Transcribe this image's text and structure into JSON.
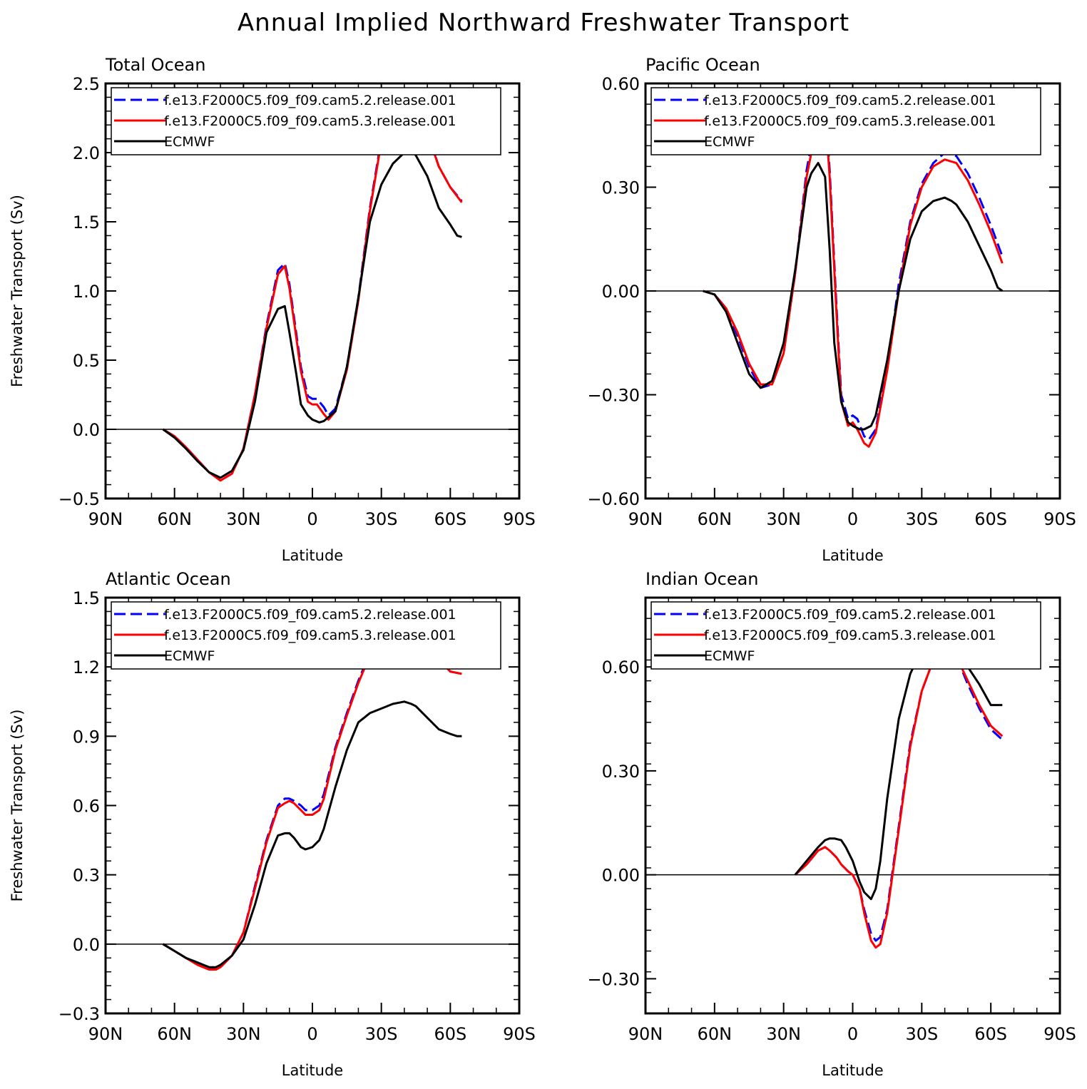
{
  "title": "Annual Implied Northward Freshwater Transport",
  "chart_data": [
    {
      "type": "line",
      "panel_title": "Total Ocean",
      "xlabel": "Latitude",
      "ylabel": "Freshwater Transport (Sv)",
      "xlim": [
        90,
        -90
      ],
      "ylim": [
        -0.5,
        2.5
      ],
      "xticks": [
        90,
        60,
        30,
        0,
        -30,
        -60,
        -90
      ],
      "xtick_labels": [
        "90N",
        "60N",
        "30N",
        "0",
        "30S",
        "60S",
        "90S"
      ],
      "yticks": [
        -0.5,
        0.0,
        0.5,
        1.0,
        1.5,
        2.0,
        2.5
      ],
      "ytick_labels": [
        "−0.5",
        "0.0",
        "0.5",
        "1.0",
        "1.5",
        "2.0",
        "2.5"
      ],
      "zero_line": true,
      "legend_position": "top-left",
      "series": [
        {
          "name": "f.e13.F2000C5.f09_f09.cam5.2.release.001",
          "color": "#0000ff",
          "dash": "dashed",
          "x": [
            65,
            60,
            55,
            50,
            45,
            40,
            35,
            30,
            25,
            20,
            15,
            12,
            10,
            5,
            2,
            0,
            -2,
            -5,
            -7,
            -10,
            -15,
            -20,
            -25,
            -30,
            -35,
            -40,
            -43,
            -45,
            -50,
            -55,
            -60,
            -65
          ],
          "y": [
            0.0,
            -0.05,
            -0.13,
            -0.22,
            -0.31,
            -0.37,
            -0.32,
            -0.14,
            0.25,
            0.75,
            1.15,
            1.2,
            1.05,
            0.45,
            0.24,
            0.22,
            0.22,
            0.16,
            0.1,
            0.15,
            0.45,
            0.95,
            1.6,
            2.1,
            2.33,
            2.42,
            2.43,
            2.38,
            2.15,
            1.9,
            1.75,
            1.65
          ]
        },
        {
          "name": "f.e13.F2000C5.f09_f09.cam5.3.release.001",
          "color": "#ff0000",
          "dash": "solid",
          "x": [
            65,
            60,
            55,
            50,
            45,
            40,
            35,
            30,
            25,
            20,
            15,
            12,
            10,
            5,
            2,
            0,
            -2,
            -5,
            -7,
            -10,
            -15,
            -20,
            -25,
            -30,
            -35,
            -40,
            -43,
            -45,
            -50,
            -55,
            -60,
            -65
          ],
          "y": [
            0.0,
            -0.05,
            -0.13,
            -0.22,
            -0.31,
            -0.37,
            -0.32,
            -0.14,
            0.25,
            0.73,
            1.12,
            1.18,
            1.02,
            0.42,
            0.2,
            0.18,
            0.18,
            0.11,
            0.07,
            0.13,
            0.43,
            0.93,
            1.58,
            2.08,
            2.32,
            2.41,
            2.42,
            2.37,
            2.14,
            1.9,
            1.75,
            1.64
          ]
        },
        {
          "name": "ECMWF",
          "color": "#000000",
          "dash": "solid",
          "x": [
            65,
            60,
            55,
            50,
            45,
            40,
            35,
            30,
            25,
            20,
            15,
            12,
            10,
            7,
            5,
            2,
            0,
            -3,
            -5,
            -10,
            -15,
            -20,
            -25,
            -30,
            -35,
            -40,
            -43,
            -45,
            -50,
            -55,
            -60,
            -63,
            -65
          ],
          "y": [
            0.0,
            -0.06,
            -0.14,
            -0.23,
            -0.31,
            -0.35,
            -0.3,
            -0.15,
            0.2,
            0.7,
            0.87,
            0.89,
            0.7,
            0.4,
            0.18,
            0.1,
            0.07,
            0.05,
            0.06,
            0.13,
            0.45,
            0.95,
            1.5,
            1.77,
            1.92,
            2.0,
            2.01,
            1.98,
            1.83,
            1.6,
            1.48,
            1.4,
            1.39
          ]
        }
      ]
    },
    {
      "type": "line",
      "panel_title": "Pacific Ocean",
      "xlabel": "Latitude",
      "ylabel": "",
      "xlim": [
        90,
        -90
      ],
      "ylim": [
        -0.6,
        0.6
      ],
      "xticks": [
        90,
        60,
        30,
        0,
        -30,
        -60,
        -90
      ],
      "xtick_labels": [
        "90N",
        "60N",
        "30N",
        "0",
        "30S",
        "60S",
        "90S"
      ],
      "yticks": [
        -0.6,
        -0.3,
        0.0,
        0.3,
        0.6
      ],
      "ytick_labels": [
        "−0.60",
        "−0.30",
        "0.00",
        "0.30",
        "0.60"
      ],
      "zero_line": true,
      "legend_position": "top-left",
      "series": [
        {
          "name": "f.e13.F2000C5.f09_f09.cam5.2.release.001",
          "color": "#0000ff",
          "dash": "dashed",
          "x": [
            65,
            60,
            55,
            50,
            45,
            40,
            35,
            30,
            25,
            20,
            15,
            12,
            10,
            7,
            5,
            2,
            0,
            -2,
            -5,
            -7,
            -10,
            -15,
            -20,
            -25,
            -30,
            -35,
            -40,
            -45,
            -50,
            -55,
            -60,
            -65
          ],
          "y": [
            0.0,
            -0.01,
            -0.05,
            -0.13,
            -0.22,
            -0.28,
            -0.27,
            -0.18,
            0.05,
            0.35,
            0.53,
            0.54,
            0.35,
            -0.05,
            -0.3,
            -0.37,
            -0.36,
            -0.37,
            -0.42,
            -0.43,
            -0.4,
            -0.22,
            0.02,
            0.2,
            0.31,
            0.37,
            0.4,
            0.39,
            0.34,
            0.27,
            0.19,
            0.1
          ]
        },
        {
          "name": "f.e13.F2000C5.f09_f09.cam5.3.release.001",
          "color": "#ff0000",
          "dash": "solid",
          "x": [
            65,
            60,
            55,
            50,
            45,
            40,
            35,
            30,
            25,
            20,
            15,
            12,
            10,
            7,
            5,
            2,
            0,
            -2,
            -5,
            -7,
            -10,
            -15,
            -20,
            -25,
            -30,
            -35,
            -40,
            -45,
            -50,
            -55,
            -60,
            -65
          ],
          "y": [
            0.0,
            -0.01,
            -0.05,
            -0.12,
            -0.21,
            -0.27,
            -0.27,
            -0.18,
            0.05,
            0.33,
            0.5,
            0.52,
            0.33,
            -0.07,
            -0.32,
            -0.39,
            -0.38,
            -0.4,
            -0.44,
            -0.45,
            -0.41,
            -0.23,
            0.0,
            0.19,
            0.3,
            0.36,
            0.38,
            0.37,
            0.32,
            0.25,
            0.17,
            0.08
          ]
        },
        {
          "name": "ECMWF",
          "color": "#000000",
          "dash": "solid",
          "x": [
            65,
            60,
            55,
            50,
            45,
            40,
            35,
            30,
            25,
            20,
            18,
            15,
            12,
            10,
            8,
            5,
            2,
            0,
            -3,
            -5,
            -8,
            -10,
            -15,
            -20,
            -25,
            -30,
            -35,
            -40,
            -43,
            -45,
            -50,
            -55,
            -60,
            -63,
            -65
          ],
          "y": [
            0.0,
            -0.01,
            -0.06,
            -0.15,
            -0.24,
            -0.28,
            -0.26,
            -0.15,
            0.06,
            0.3,
            0.34,
            0.37,
            0.33,
            0.12,
            -0.15,
            -0.32,
            -0.38,
            -0.39,
            -0.4,
            -0.4,
            -0.39,
            -0.36,
            -0.2,
            0.0,
            0.15,
            0.23,
            0.26,
            0.27,
            0.26,
            0.25,
            0.2,
            0.13,
            0.06,
            0.01,
            0.0
          ]
        }
      ]
    },
    {
      "type": "line",
      "panel_title": "Atlantic Ocean",
      "xlabel": "Latitude",
      "ylabel": "Freshwater Transport (Sv)",
      "xlim": [
        90,
        -90
      ],
      "ylim": [
        -0.3,
        1.5
      ],
      "xticks": [
        90,
        60,
        30,
        0,
        -30,
        -60,
        -90
      ],
      "xtick_labels": [
        "90N",
        "60N",
        "30N",
        "0",
        "30S",
        "60S",
        "90S"
      ],
      "yticks": [
        -0.3,
        0.0,
        0.3,
        0.6,
        0.9,
        1.2,
        1.5
      ],
      "ytick_labels": [
        "−0.3",
        "0.0",
        "0.3",
        "0.6",
        "0.9",
        "1.2",
        "1.5"
      ],
      "zero_line": true,
      "legend_position": "top-left",
      "series": [
        {
          "name": "f.e13.F2000C5.f09_f09.cam5.2.release.001",
          "color": "#0000ff",
          "dash": "dashed",
          "x": [
            65,
            60,
            55,
            50,
            45,
            42,
            40,
            35,
            30,
            25,
            20,
            15,
            12,
            10,
            8,
            5,
            3,
            0,
            -3,
            -5,
            -10,
            -15,
            -20,
            -25,
            -30,
            -35,
            -40,
            -43,
            -45,
            -50,
            -55,
            -60,
            -65
          ],
          "y": [
            0.0,
            -0.03,
            -0.06,
            -0.08,
            -0.1,
            -0.11,
            -0.1,
            -0.05,
            0.05,
            0.25,
            0.45,
            0.6,
            0.63,
            0.63,
            0.62,
            0.6,
            0.58,
            0.58,
            0.6,
            0.65,
            0.85,
            1.0,
            1.14,
            1.26,
            1.33,
            1.37,
            1.38,
            1.36,
            1.33,
            1.28,
            1.23,
            1.18,
            1.17
          ]
        },
        {
          "name": "f.e13.F2000C5.f09_f09.cam5.3.release.001",
          "color": "#ff0000",
          "dash": "solid",
          "x": [
            65,
            60,
            55,
            50,
            45,
            42,
            40,
            35,
            30,
            25,
            20,
            15,
            12,
            10,
            8,
            5,
            3,
            0,
            -3,
            -5,
            -10,
            -15,
            -20,
            -25,
            -30,
            -35,
            -40,
            -43,
            -45,
            -50,
            -55,
            -60,
            -65
          ],
          "y": [
            0.0,
            -0.03,
            -0.06,
            -0.09,
            -0.11,
            -0.11,
            -0.1,
            -0.05,
            0.05,
            0.24,
            0.44,
            0.59,
            0.61,
            0.62,
            0.61,
            0.58,
            0.56,
            0.56,
            0.58,
            0.63,
            0.84,
            0.99,
            1.13,
            1.25,
            1.32,
            1.36,
            1.38,
            1.36,
            1.33,
            1.28,
            1.23,
            1.18,
            1.17
          ]
        },
        {
          "name": "ECMWF",
          "color": "#000000",
          "dash": "solid",
          "x": [
            65,
            60,
            55,
            50,
            45,
            42,
            40,
            35,
            30,
            25,
            20,
            15,
            12,
            10,
            8,
            5,
            3,
            0,
            -3,
            -5,
            -10,
            -15,
            -20,
            -25,
            -30,
            -35,
            -40,
            -43,
            -45,
            -50,
            -55,
            -60,
            -63,
            -65
          ],
          "y": [
            0.0,
            -0.03,
            -0.06,
            -0.08,
            -0.1,
            -0.1,
            -0.09,
            -0.05,
            0.02,
            0.17,
            0.35,
            0.47,
            0.48,
            0.48,
            0.46,
            0.42,
            0.41,
            0.42,
            0.45,
            0.5,
            0.68,
            0.84,
            0.96,
            1.0,
            1.02,
            1.04,
            1.05,
            1.04,
            1.03,
            0.98,
            0.93,
            0.91,
            0.9,
            0.9
          ]
        }
      ]
    },
    {
      "type": "line",
      "panel_title": "Indian Ocean",
      "xlabel": "Latitude",
      "ylabel": "",
      "xlim": [
        90,
        -90
      ],
      "ylim": [
        -0.4,
        0.8
      ],
      "xticks": [
        90,
        60,
        30,
        0,
        -30,
        -60,
        -90
      ],
      "xtick_labels": [
        "90N",
        "60N",
        "30N",
        "0",
        "30S",
        "60S",
        "90S"
      ],
      "yticks": [
        -0.3,
        0.0,
        0.3,
        0.6
      ],
      "ytick_labels": [
        "−0.30",
        "0.00",
        "0.30",
        "0.60"
      ],
      "zero_line": true,
      "legend_position": "top-left",
      "series": [
        {
          "name": "f.e13.F2000C5.f09_f09.cam5.2.release.001",
          "color": "#0000ff",
          "dash": "dashed",
          "x": [
            25,
            20,
            15,
            12,
            10,
            7,
            5,
            2,
            0,
            -3,
            -5,
            -8,
            -10,
            -12,
            -15,
            -20,
            -25,
            -30,
            -35,
            -40,
            -42,
            -45,
            -50,
            -55,
            -60,
            -65
          ],
          "y": [
            0.0,
            0.03,
            0.07,
            0.08,
            0.07,
            0.05,
            0.03,
            0.01,
            0.0,
            -0.04,
            -0.1,
            -0.17,
            -0.19,
            -0.18,
            -0.1,
            0.14,
            0.38,
            0.53,
            0.62,
            0.66,
            0.66,
            0.63,
            0.55,
            0.48,
            0.42,
            0.39
          ]
        },
        {
          "name": "f.e13.F2000C5.f09_f09.cam5.3.release.001",
          "color": "#ff0000",
          "dash": "solid",
          "x": [
            25,
            20,
            15,
            12,
            10,
            7,
            5,
            2,
            0,
            -3,
            -5,
            -8,
            -10,
            -12,
            -15,
            -20,
            -25,
            -30,
            -35,
            -40,
            -42,
            -45,
            -50,
            -55,
            -60,
            -65
          ],
          "y": [
            0.0,
            0.03,
            0.07,
            0.08,
            0.07,
            0.05,
            0.03,
            0.01,
            0.0,
            -0.04,
            -0.11,
            -0.19,
            -0.21,
            -0.2,
            -0.11,
            0.13,
            0.37,
            0.53,
            0.62,
            0.66,
            0.66,
            0.63,
            0.56,
            0.49,
            0.43,
            0.4
          ]
        },
        {
          "name": "ECMWF",
          "color": "#000000",
          "dash": "solid",
          "x": [
            25,
            20,
            15,
            12,
            10,
            8,
            5,
            3,
            0,
            -3,
            -5,
            -8,
            -10,
            -12,
            -15,
            -20,
            -25,
            -30,
            -35,
            -40,
            -43,
            -45,
            -50,
            -55,
            -60,
            -63,
            -65
          ],
          "y": [
            0.0,
            0.04,
            0.08,
            0.1,
            0.105,
            0.105,
            0.1,
            0.08,
            0.04,
            -0.02,
            -0.05,
            -0.07,
            -0.04,
            0.04,
            0.22,
            0.45,
            0.58,
            0.65,
            0.69,
            0.7,
            0.7,
            0.67,
            0.6,
            0.55,
            0.49,
            0.49,
            0.49
          ]
        }
      ]
    }
  ]
}
